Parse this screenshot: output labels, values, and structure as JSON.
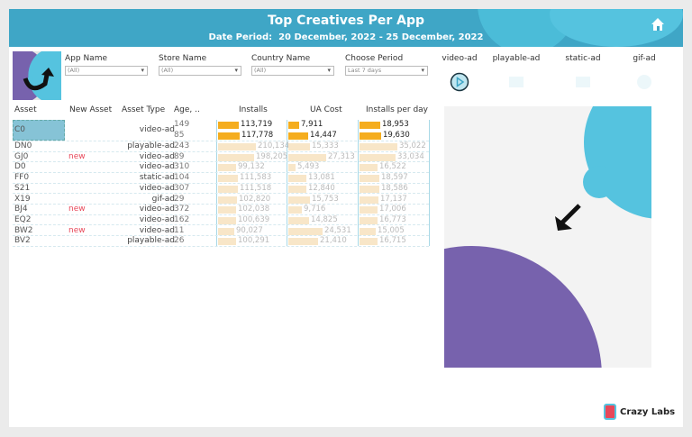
{
  "header": {
    "title": "Top Creatives Per App",
    "period_label": "Date Period:",
    "period_value": "20 December, 2022 - 25 December, 2022"
  },
  "filters": [
    {
      "label": "App Name",
      "value": "(All)"
    },
    {
      "label": "Store Name",
      "value": "(All)"
    },
    {
      "label": "Country Name",
      "value": "(All)"
    },
    {
      "label": "Choose Period",
      "value": "Last 7 days"
    }
  ],
  "ad_types": [
    {
      "label": "video-ad",
      "icon": "play-icon",
      "active": true
    },
    {
      "label": "playable-ad",
      "icon": "playable-icon",
      "active": false
    },
    {
      "label": "static-ad",
      "icon": "image-icon",
      "active": false
    },
    {
      "label": "gif-ad",
      "icon": "gif-icon",
      "active": false
    }
  ],
  "table": {
    "headers": [
      "Asset",
      "New Asset",
      "Asset Type",
      "Age, ..",
      "Installs",
      "UA Cost",
      "Installs per day"
    ],
    "rows": [
      {
        "asset": "C0",
        "new": "",
        "type": "video-ad",
        "age": "149",
        "installs": 113719,
        "ua_cost": 7911,
        "ipd": 18953,
        "highlight": true
      },
      {
        "asset": "",
        "new": "",
        "type": "",
        "age": "85",
        "installs": 117778,
        "ua_cost": 14447,
        "ipd": 19630,
        "highlight": true
      },
      {
        "asset": "DN0",
        "new": "",
        "type": "playable-ad",
        "age": "243",
        "installs": 210134,
        "ua_cost": 15333,
        "ipd": 35022
      },
      {
        "asset": "GJ0",
        "new": "new",
        "type": "video-ad",
        "age": "89",
        "installs": 198205,
        "ua_cost": 27313,
        "ipd": 33034
      },
      {
        "asset": "D0",
        "new": "",
        "type": "video-ad",
        "age": "310",
        "installs": 99132,
        "ua_cost": 5493,
        "ipd": 16522
      },
      {
        "asset": "FF0",
        "new": "",
        "type": "static-ad",
        "age": "104",
        "installs": 111583,
        "ua_cost": 13081,
        "ipd": 18597
      },
      {
        "asset": "S21",
        "new": "",
        "type": "video-ad",
        "age": "307",
        "installs": 111518,
        "ua_cost": 12840,
        "ipd": 18586
      },
      {
        "asset": "X19",
        "new": "",
        "type": "gif-ad",
        "age": "29",
        "installs": 102820,
        "ua_cost": 15753,
        "ipd": 17137
      },
      {
        "asset": "BJ4",
        "new": "new",
        "type": "video-ad",
        "age": "372",
        "installs": 102038,
        "ua_cost": 9716,
        "ipd": 17006
      },
      {
        "asset": "EQ2",
        "new": "",
        "type": "video-ad",
        "age": "162",
        "installs": 100639,
        "ua_cost": 14825,
        "ipd": 16773
      },
      {
        "asset": "BW2",
        "new": "new",
        "type": "video-ad",
        "age": "11",
        "installs": 90027,
        "ua_cost": 24531,
        "ipd": 15005
      },
      {
        "asset": "BV2",
        "new": "",
        "type": "playable-ad",
        "age": "26",
        "installs": 100291,
        "ua_cost": 21410,
        "ipd": 16715
      }
    ]
  },
  "colors": {
    "header": "#3fa6c6",
    "bar_highlight": "#f5ad1e",
    "bar_faded": "#f8e6c8",
    "new": "#e8485a",
    "purple": "#7762ad",
    "teal": "#55c3df"
  },
  "brand": "Crazy Labs"
}
